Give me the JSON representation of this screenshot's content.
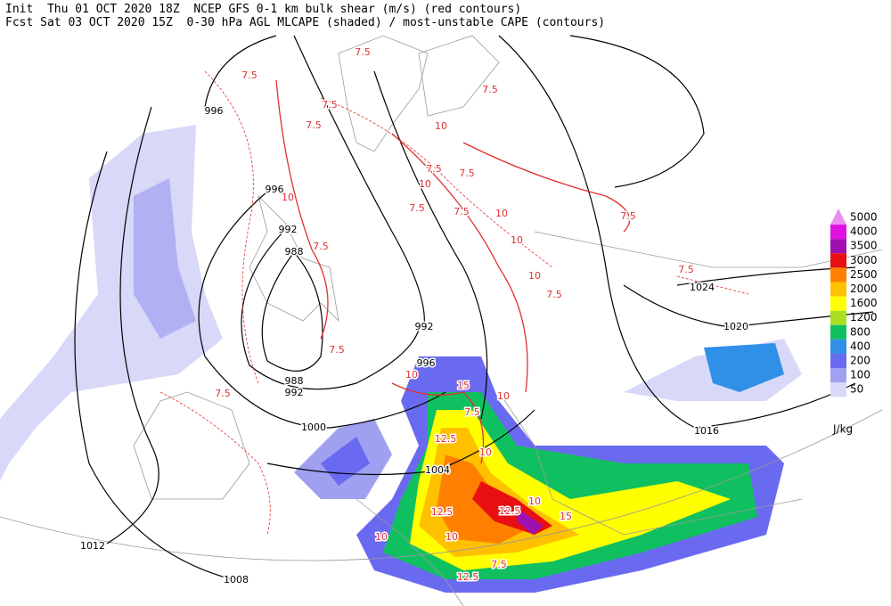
{
  "header": {
    "lines": [
      "Init  Thu 01 OCT 2020 18Z  NCEP GFS 0-1 km bulk shear (m/s) (red contours)",
      "Fcst Sat 03 OCT 2020 15Z  0-30 hPa AGL MLCAPE (shaded) / most-unstable CAPE (contours)"
    ]
  },
  "legend": {
    "unit": "J/kg",
    "items": [
      {
        "label": "5000",
        "color": "#e98ff0"
      },
      {
        "label": "4000",
        "color": "#e010e0"
      },
      {
        "label": "3500",
        "color": "#a010b0"
      },
      {
        "label": "3000",
        "color": "#e81010"
      },
      {
        "label": "2500",
        "color": "#ff8000"
      },
      {
        "label": "2000",
        "color": "#ffc000"
      },
      {
        "label": "1600",
        "color": "#ffff00"
      },
      {
        "label": "1200",
        "color": "#a8e020"
      },
      {
        "label": "800",
        "color": "#10c060"
      },
      {
        "label": "400",
        "color": "#3090e8"
      },
      {
        "label": "200",
        "color": "#6a6af0"
      },
      {
        "label": "100",
        "color": "#a0a0f0"
      },
      {
        "label": "50",
        "color": "#d8d8f8"
      }
    ]
  },
  "isobars": {
    "labels": [
      "996",
      "996",
      "992",
      "988",
      "992",
      "996",
      "988",
      "992",
      "1000",
      "1004",
      "1008",
      "1012",
      "1016",
      "1020",
      "1024"
    ]
  },
  "shear": {
    "labels": [
      "7.5",
      "7.5",
      "7.5",
      "7.5",
      "7.5",
      "7.5",
      "7.5",
      "7.5",
      "7.5",
      "7.5",
      "7.5",
      "7.5",
      "7.5",
      "7.5",
      "7.5",
      "7.5",
      "7.5",
      "10",
      "10",
      "10",
      "10",
      "10",
      "10",
      "10",
      "10",
      "10",
      "10",
      "10",
      "10",
      "12.5",
      "12.5",
      "12.5",
      "12.5",
      "15",
      "15"
    ]
  }
}
